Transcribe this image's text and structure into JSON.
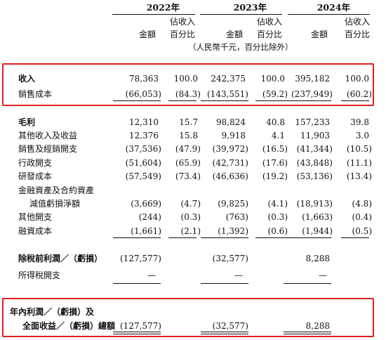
{
  "header": {
    "years": [
      "2022年",
      "2023年",
      "2024年"
    ],
    "col_amount": "金額",
    "col_pct_line1": "佔收入",
    "col_pct_line2": "百分比",
    "unit_note": "（人民幣千元，百分比除外）"
  },
  "rows": [
    {
      "label": "收入",
      "v": [
        "78,363",
        "100.0",
        "242,375",
        "100.0",
        "395,182",
        "100.0"
      ]
    },
    {
      "label": "銷售成本",
      "v": [
        "(66,053)",
        "(84.3)",
        "(143,551)",
        "(59.2)",
        "(237,949)",
        "(60.2)"
      ]
    },
    {
      "label": "毛利",
      "v": [
        "12,310",
        "15.7",
        "98,824",
        "40.8",
        "157,233",
        "39.8"
      ]
    },
    {
      "label": "其他收入及收益",
      "v": [
        "12,376",
        "15.8",
        "9,918",
        "4.1",
        "11,903",
        "3.0"
      ]
    },
    {
      "label": "銷售及經銷開支",
      "v": [
        "(37,536)",
        "(47.9)",
        "(39,972)",
        "(16.5)",
        "(41,344)",
        "(10.5)"
      ]
    },
    {
      "label": "行政開支",
      "v": [
        "(51,604)",
        "(65.9)",
        "(42,731)",
        "(17.6)",
        "(43,848)",
        "(11.1)"
      ]
    },
    {
      "label": "研發成本",
      "v": [
        "(57,549)",
        "(73.4)",
        "(46,636)",
        "(19.2)",
        "(53,136)",
        "(13.4)"
      ]
    },
    {
      "label": "金融資產及合約資產",
      "v": [
        "",
        "",
        "",
        "",
        "",
        ""
      ]
    },
    {
      "label": "減值虧損淨額",
      "v": [
        "(3,669)",
        "(4.7)",
        "(9,825)",
        "(4.1)",
        "(18,913)",
        "(4.8)"
      ]
    },
    {
      "label": "其他開支",
      "v": [
        "(244)",
        "(0.3)",
        "(763)",
        "(0.3)",
        "(1,663)",
        "(0.4)"
      ]
    },
    {
      "label": "融資成本",
      "v": [
        "(1,661)",
        "(2.1)",
        "(1,392)",
        "(0.6)",
        "(1,944)",
        "(0.5)"
      ]
    },
    {
      "label": "除稅前利潤／（虧損）",
      "v": [
        "(127,577)",
        "",
        "(32,577)",
        "",
        "8,288",
        ""
      ]
    },
    {
      "label": "所得稅開支",
      "v": [
        "—",
        "",
        "—",
        "",
        "—",
        ""
      ]
    },
    {
      "label": "年內利潤／（虧損）及",
      "v": [
        "",
        "",
        "",
        "",
        "",
        ""
      ]
    },
    {
      "label": "全面收益／（虧損）總額",
      "v": [
        "(127,577)",
        "",
        "(32,577)",
        "",
        "8,288",
        ""
      ]
    }
  ]
}
